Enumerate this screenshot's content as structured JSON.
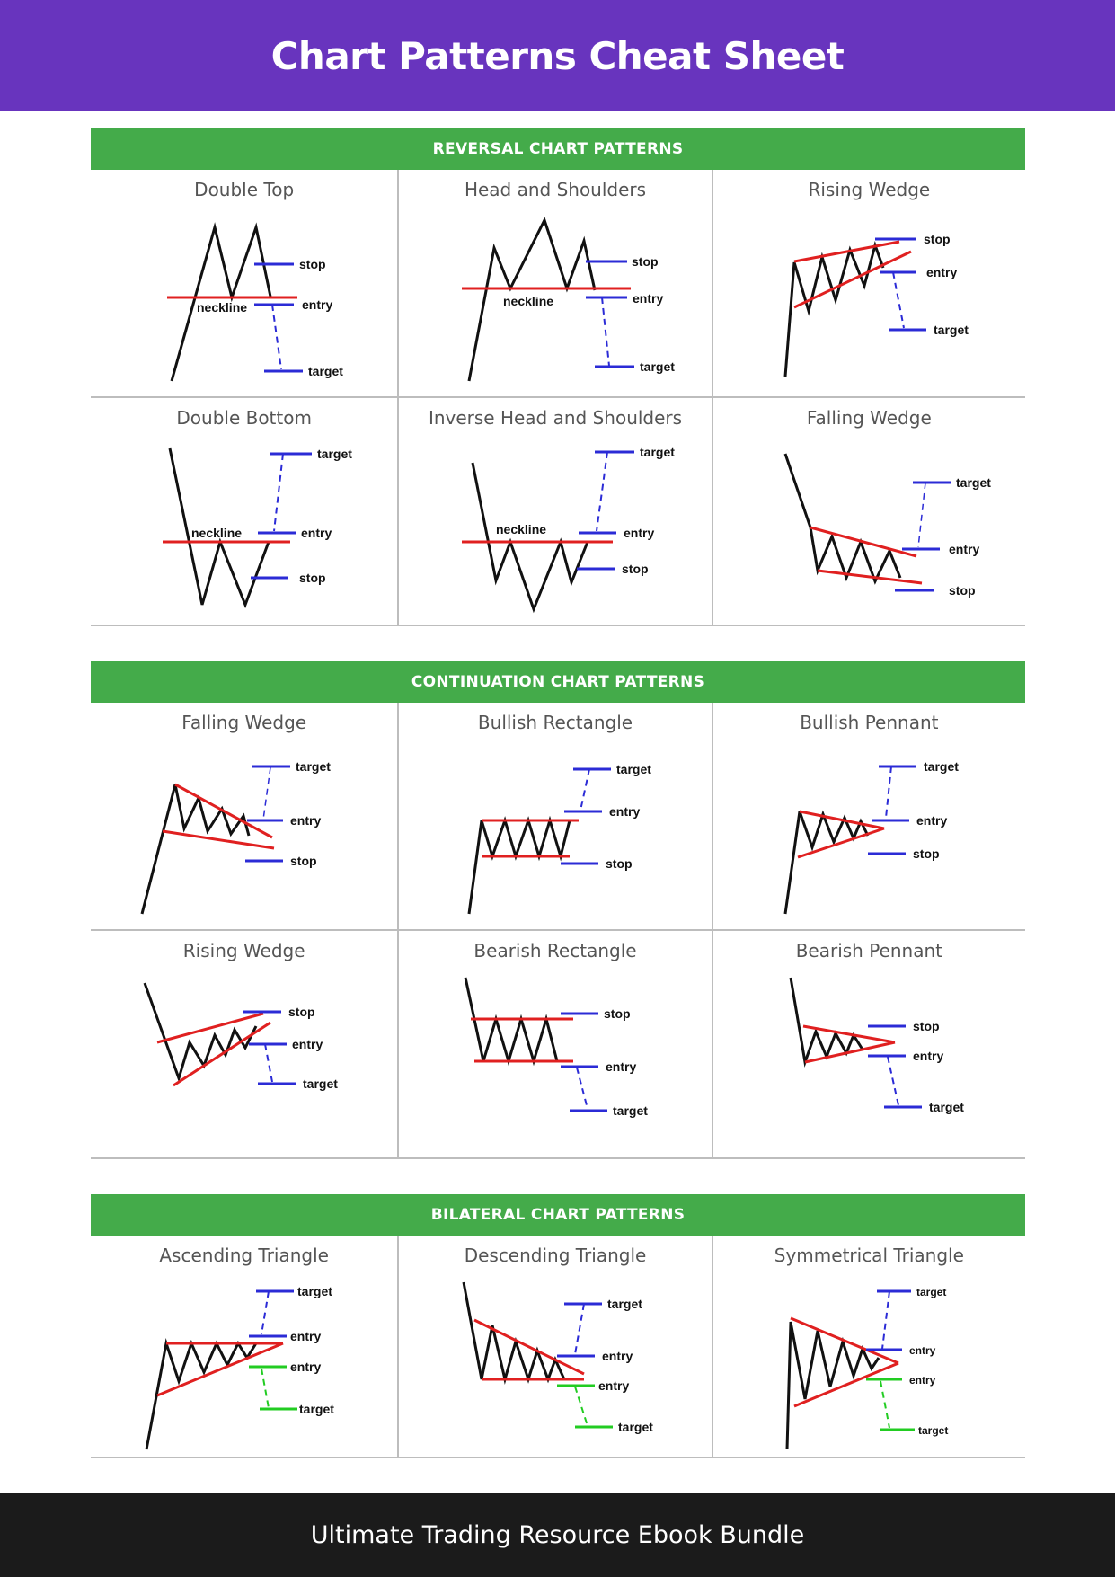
{
  "page_title": "Chart Patterns Cheat Sheet",
  "footer_text": "Ultimate Trading Resource Ebook Bundle",
  "colors": {
    "header": "#6834be",
    "banner": "#44ab4a",
    "footer": "#1b1b1b",
    "trend": "#e02020",
    "level": "#2b2bd6",
    "alt_level": "#22cc22"
  },
  "labels": {
    "stop": "stop",
    "entry": "entry",
    "target": "target",
    "neckline": "neckline"
  },
  "sections": [
    {
      "title": "REVERSAL CHART PATTERNS",
      "patterns": [
        "Double Top",
        "Head and Shoulders",
        "Rising Wedge",
        "Double Bottom",
        "Inverse Head and Shoulders",
        "Falling Wedge"
      ]
    },
    {
      "title": "CONTINUATION CHART PATTERNS",
      "patterns": [
        "Falling Wedge",
        "Bullish Rectangle",
        "Bullish Pennant",
        "Rising Wedge",
        "Bearish Rectangle",
        "Bearish Pennant"
      ]
    },
    {
      "title": "BILATERAL CHART PATTERNS",
      "patterns": [
        "Ascending Triangle",
        "Descending Triangle",
        "Symmetrical Triangle"
      ]
    }
  ]
}
